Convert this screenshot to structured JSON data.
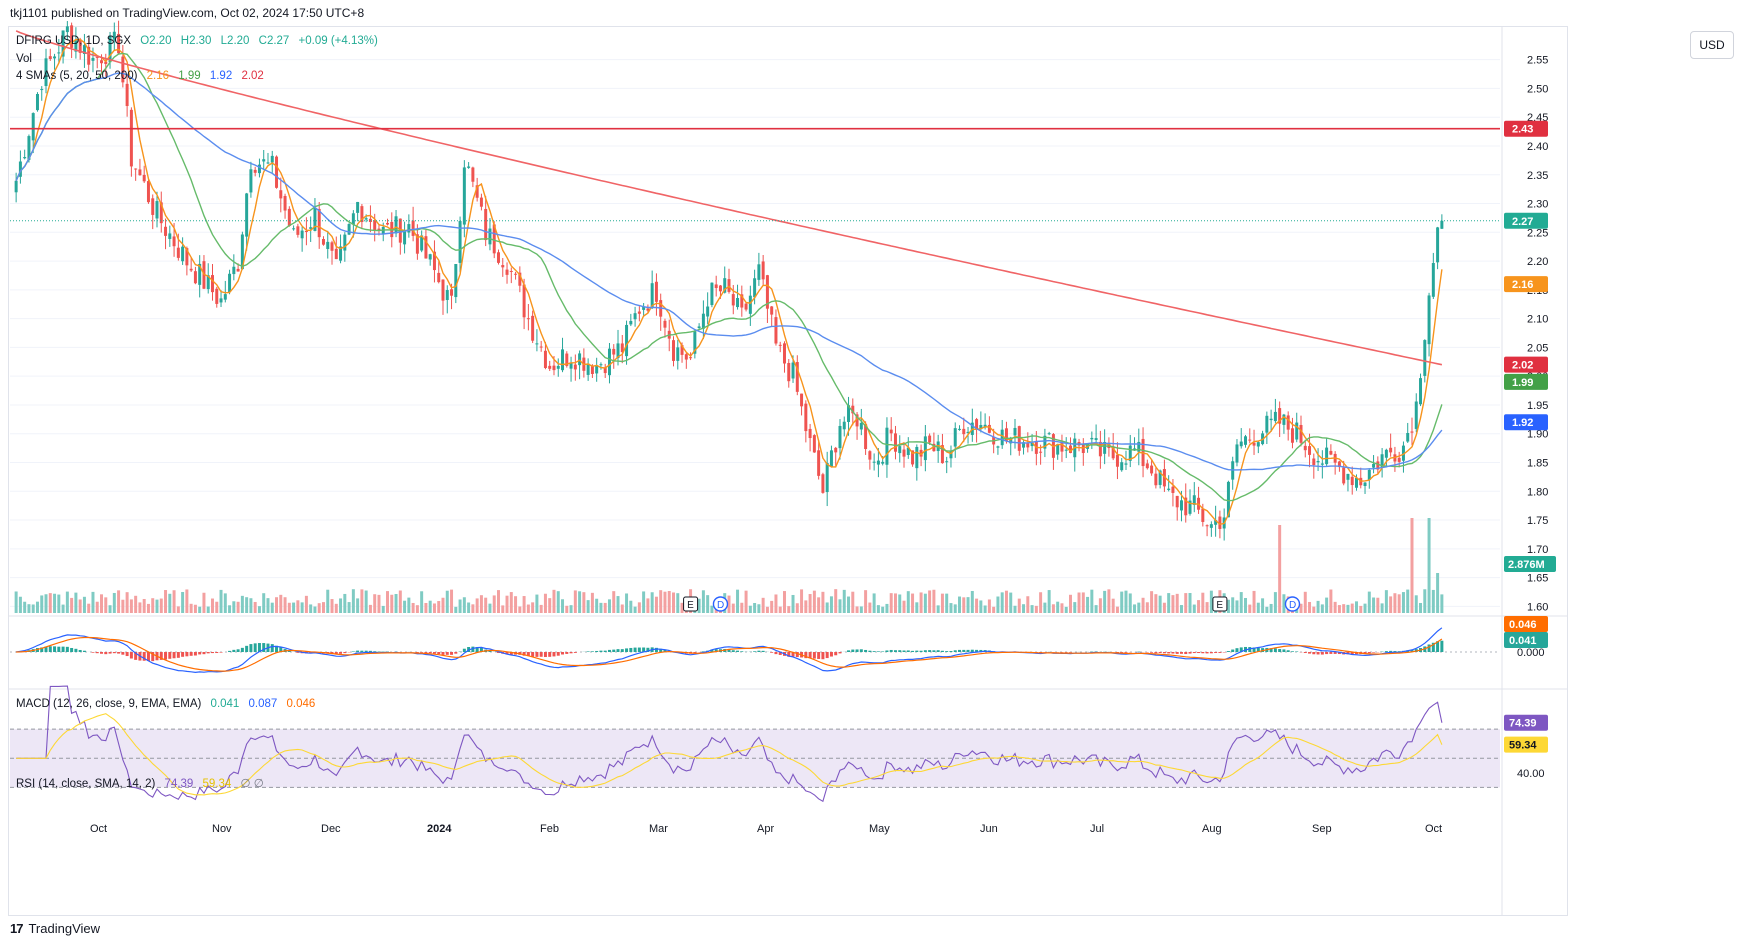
{
  "header": {
    "caption": "tkj1101 published on TradingView.com, Oct 02, 2024 17:50 UTC+8"
  },
  "legend": {
    "symbol": "DFIRG USD, 1D, SGX",
    "o": "O2.20",
    "h": "H2.30",
    "l": "L2.20",
    "c": "C2.27",
    "chg": "+0.09 (+4.13%)",
    "vol_label": "Vol",
    "ma_label": "4 SMAs (5, 20, 50, 200)",
    "ma5": "2.16",
    "ma20": "1.99",
    "ma50": "1.92",
    "ma200": "2.02",
    "macd_label": "MACD (12, 26, close, 9, EMA, EMA)",
    "macd_hist": "0.041",
    "macd_line": "0.087",
    "macd_signal": "0.046",
    "rsi_label": "RSI (14, close, SMA, 14, 2)",
    "rsi_val": "74.39",
    "rsi_ma": "59.34",
    "rsi_extra": "∅ ∅"
  },
  "currency_button": "USD",
  "colors": {
    "up": "#26a69a",
    "down": "#ef5350",
    "up_vol": "#7fcbc3",
    "down_vol": "#f3a0a0",
    "ma5": "#f7941d",
    "ma20": "#66bb6a",
    "ma50": "#5b8def",
    "ma200": "#f06466",
    "resistance": "#e03040",
    "macd_line": "#2962ff",
    "macd_signal": "#ff6d00",
    "rsi_line": "#7e57c2",
    "rsi_ma": "#fdd835",
    "rsi_band": "#ede7f6"
  },
  "chart_data": {
    "type": "candlestick",
    "symbol": "DFIRG USD",
    "interval": "1D",
    "price_axis": {
      "ticks": [
        "2.55",
        "2.50",
        "2.45",
        "2.40",
        "2.35",
        "2.30",
        "2.25",
        "2.20",
        "2.15",
        "2.10",
        "2.05",
        "2.00",
        "1.95",
        "1.90",
        "1.85",
        "1.80",
        "1.75",
        "1.70",
        "1.65",
        "1.60"
      ],
      "range": [
        1.585,
        2.605
      ]
    },
    "time_axis": {
      "labels": [
        "Oct",
        "Nov",
        "Dec",
        "2024",
        "Feb",
        "Mar",
        "Apr",
        "May",
        "Jun",
        "Jul",
        "Aug",
        "Sep",
        "Oct"
      ]
    },
    "resistance_level": 2.43,
    "last_close": 2.27,
    "price_badges": [
      {
        "label": "2.43",
        "value": 2.43,
        "color": "#e03040"
      },
      {
        "label": "2.27",
        "value": 2.27,
        "color": "#22ab94"
      },
      {
        "label": "2.16",
        "value": 2.16,
        "color": "#f7941d"
      },
      {
        "label": "2.02",
        "value": 2.02,
        "color": "#e03040"
      },
      {
        "label": "1.99",
        "value": 1.99,
        "color": "#43a047"
      },
      {
        "label": "1.92",
        "value": 1.92,
        "color": "#2962ff"
      }
    ],
    "volume_badge": "2.876M",
    "events": [
      {
        "label": "E",
        "date_index": 158
      },
      {
        "label": "D",
        "date_index": 165
      },
      {
        "label": "E",
        "date_index": 282
      },
      {
        "label": "D",
        "date_index": 299
      }
    ],
    "macd_axis": {
      "ticks": [
        "0.000"
      ],
      "badges": [
        "0.046",
        "0.041"
      ]
    },
    "rsi_axis": {
      "ticks": [
        "40.00"
      ],
      "badges": [
        "74.39",
        "59.34"
      ],
      "bands": [
        70,
        30
      ]
    },
    "anchors": [
      [
        0,
        2.34
      ],
      [
        6,
        2.52
      ],
      [
        12,
        2.6
      ],
      [
        18,
        2.55
      ],
      [
        24,
        2.58
      ],
      [
        27,
        2.38
      ],
      [
        33,
        2.28
      ],
      [
        40,
        2.2
      ],
      [
        48,
        2.13
      ],
      [
        52,
        2.2
      ],
      [
        55,
        2.38
      ],
      [
        60,
        2.36
      ],
      [
        65,
        2.24
      ],
      [
        70,
        2.28
      ],
      [
        75,
        2.18
      ],
      [
        80,
        2.3
      ],
      [
        86,
        2.25
      ],
      [
        92,
        2.26
      ],
      [
        98,
        2.18
      ],
      [
        102,
        2.12
      ],
      [
        105,
        2.38
      ],
      [
        110,
        2.25
      ],
      [
        115,
        2.2
      ],
      [
        120,
        2.1
      ],
      [
        125,
        2.02
      ],
      [
        130,
        2.04
      ],
      [
        136,
        2.02
      ],
      [
        142,
        2.05
      ],
      [
        146,
        2.12
      ],
      [
        150,
        2.15
      ],
      [
        154,
        2.05
      ],
      [
        158,
        2.03
      ],
      [
        162,
        2.14
      ],
      [
        166,
        2.15
      ],
      [
        170,
        2.1
      ],
      [
        174,
        2.18
      ],
      [
        178,
        2.05
      ],
      [
        182,
        2.0
      ],
      [
        186,
        1.88
      ],
      [
        189,
        1.8
      ],
      [
        193,
        1.92
      ],
      [
        197,
        1.93
      ],
      [
        201,
        1.85
      ],
      [
        205,
        1.9
      ],
      [
        210,
        1.86
      ],
      [
        214,
        1.88
      ],
      [
        218,
        1.86
      ],
      [
        222,
        1.92
      ],
      [
        226,
        1.92
      ],
      [
        232,
        1.89
      ],
      [
        238,
        1.89
      ],
      [
        244,
        1.88
      ],
      [
        250,
        1.88
      ],
      [
        256,
        1.86
      ],
      [
        262,
        1.87
      ],
      [
        266,
        1.84
      ],
      [
        270,
        1.79
      ],
      [
        276,
        1.77
      ],
      [
        280,
        1.74
      ],
      [
        283,
        1.76
      ],
      [
        286,
        1.88
      ],
      [
        290,
        1.9
      ],
      [
        296,
        1.92
      ],
      [
        300,
        1.9
      ],
      [
        305,
        1.86
      ],
      [
        310,
        1.84
      ],
      [
        315,
        1.82
      ],
      [
        320,
        1.86
      ],
      [
        325,
        1.88
      ],
      [
        328,
        1.95
      ],
      [
        331,
        2.15
      ],
      [
        333,
        2.25
      ],
      [
        334,
        2.27
      ]
    ]
  }
}
